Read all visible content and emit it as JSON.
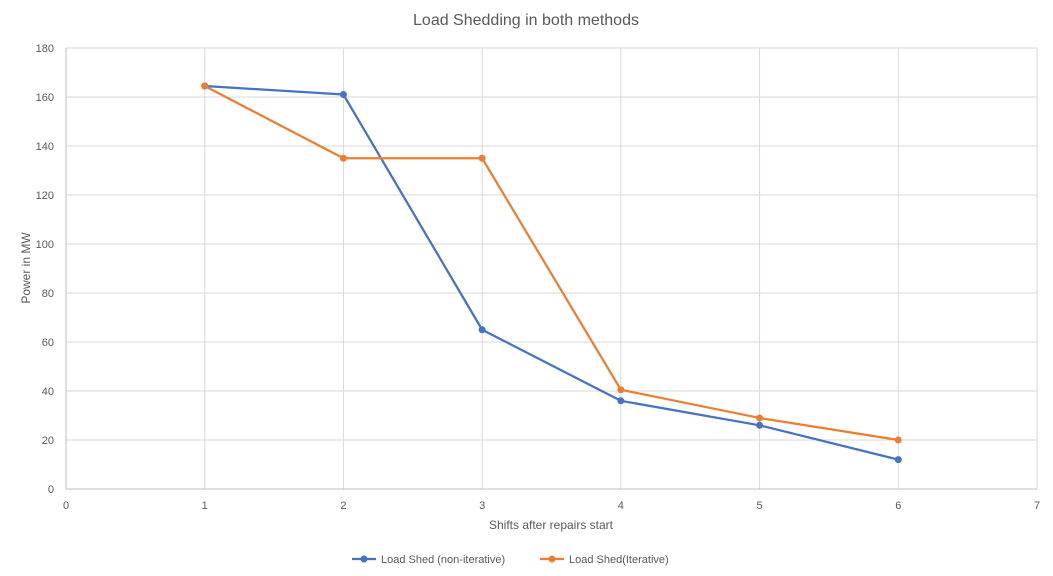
{
  "chart_data": {
    "type": "line",
    "title": "Load Shedding in both methods",
    "xlabel": "Shifts after repairs start",
    "ylabel": "Power in MW",
    "xlim": [
      0,
      7
    ],
    "ylim": [
      0,
      180
    ],
    "x_ticks": [
      0,
      1,
      2,
      3,
      4,
      5,
      6,
      7
    ],
    "y_ticks": [
      0,
      20,
      40,
      60,
      80,
      100,
      120,
      140,
      160,
      180
    ],
    "grid": true,
    "legend_position": "bottom",
    "series": [
      {
        "name": "Load Shed (non-iterative)",
        "color": "#4472c4",
        "x": [
          1,
          2,
          3,
          4,
          5,
          6
        ],
        "values": [
          164.5,
          161,
          65,
          36,
          26,
          12
        ]
      },
      {
        "name": "Load Shed(Iterative)",
        "color": "#ed7d31",
        "x": [
          1,
          2,
          3,
          4,
          5,
          6
        ],
        "values": [
          164.5,
          135,
          135,
          40.5,
          29,
          20
        ]
      }
    ]
  }
}
